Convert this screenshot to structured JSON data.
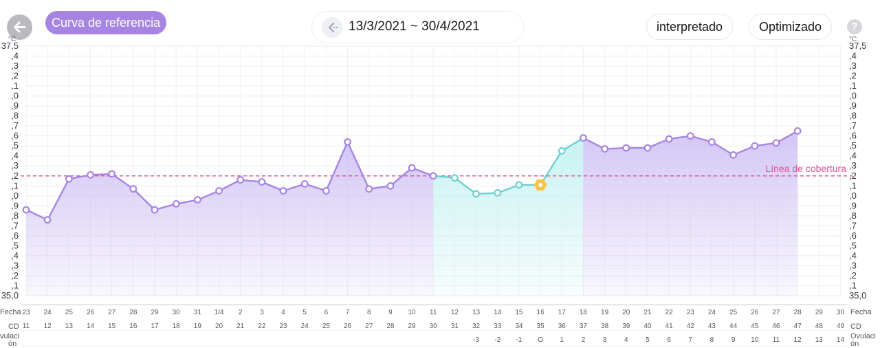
{
  "header": {
    "back_icon": "arrow-left-icon",
    "reference_curve_label": "Curva de referencia",
    "date_range": "13/3/2021 ~ 30/4/2021",
    "nav_icon": "chevron-left-dots-icon",
    "interpretado_label": "interpretado",
    "optimizado_label": "Optimizado",
    "help_icon": "question-icon",
    "help_text": "?"
  },
  "colors": {
    "purple": "#a685e2",
    "teal": "#6fd0d0",
    "cover_line": "#e0519a",
    "purple_fill": "#cbbdf3",
    "teal_fill": "#c6f1f1",
    "ovulation_marker": "#f6c445"
  },
  "chart_data": {
    "type": "line",
    "y_axis_labels": [
      "37,5",
      ",4",
      ",3",
      ",2",
      ",1",
      ",0",
      ",9",
      ",8",
      ",7",
      ",6",
      ",5",
      ",4",
      ",3",
      ",2",
      ",1",
      ",0",
      ",9",
      ",8",
      ",7",
      ",6",
      ",5",
      ",4",
      ",3",
      ",2",
      ",1",
      "35,0"
    ],
    "y_axis_top_unit": "°C",
    "ylim": [
      35.0,
      37.5
    ],
    "cover_line": {
      "value": 36.2,
      "label": "Línea de cobertura"
    },
    "x_rows": {
      "fecha": {
        "label": "Fecha",
        "values": [
          "23",
          "24",
          "25",
          "26",
          "27",
          "28",
          "29",
          "30",
          "31",
          "1/4",
          "2",
          "3",
          "4",
          "5",
          "6",
          "7",
          "8",
          "9",
          "10",
          "11",
          "12",
          "13",
          "14",
          "15",
          "16",
          "17",
          "18",
          "19",
          "20",
          "21",
          "22",
          "23",
          "24",
          "25",
          "26",
          "27",
          "28",
          "29",
          "30"
        ]
      },
      "cd": {
        "label": "CD",
        "values": [
          "11",
          "12",
          "13",
          "14",
          "15",
          "16",
          "17",
          "18",
          "19",
          "20",
          "21",
          "22",
          "23",
          "24",
          "25",
          "26",
          "27",
          "28",
          "29",
          "30",
          "31",
          "32",
          "33",
          "34",
          "35",
          "36",
          "37",
          "38",
          "39",
          "40",
          "41",
          "42",
          "43",
          "44",
          "45",
          "46",
          "47",
          "48",
          "49"
        ]
      },
      "ovulacion": {
        "label": "Ovulaci ón",
        "values": [
          "",
          "",
          "",
          "",
          "",
          "",
          "",
          "",
          "",
          "",
          "",
          "",
          "",
          "",
          "",
          "",
          "",
          "",
          "",
          "",
          "",
          "-3",
          "-2",
          "-1",
          "O",
          "1",
          "2",
          "3",
          "4",
          "5",
          "6",
          "7",
          "8",
          "9",
          "10",
          "11",
          "12",
          "13",
          "14"
        ]
      }
    },
    "series": [
      {
        "values": [
          35.86,
          35.76,
          36.17,
          36.21,
          36.22,
          36.07,
          35.86,
          35.92,
          35.96,
          36.05,
          36.16,
          36.14,
          36.05,
          36.12,
          36.05,
          36.54,
          36.07,
          36.1,
          36.28,
          36.2,
          36.18,
          36.02,
          36.03,
          36.11,
          36.11,
          36.45,
          36.58,
          36.47,
          36.48,
          36.48,
          36.57,
          36.6,
          36.54,
          36.41,
          36.5,
          36.53,
          36.65,
          null,
          null
        ]
      }
    ],
    "teal_segment_range": [
      "11",
      "18"
    ],
    "ovulation_day": "16"
  }
}
